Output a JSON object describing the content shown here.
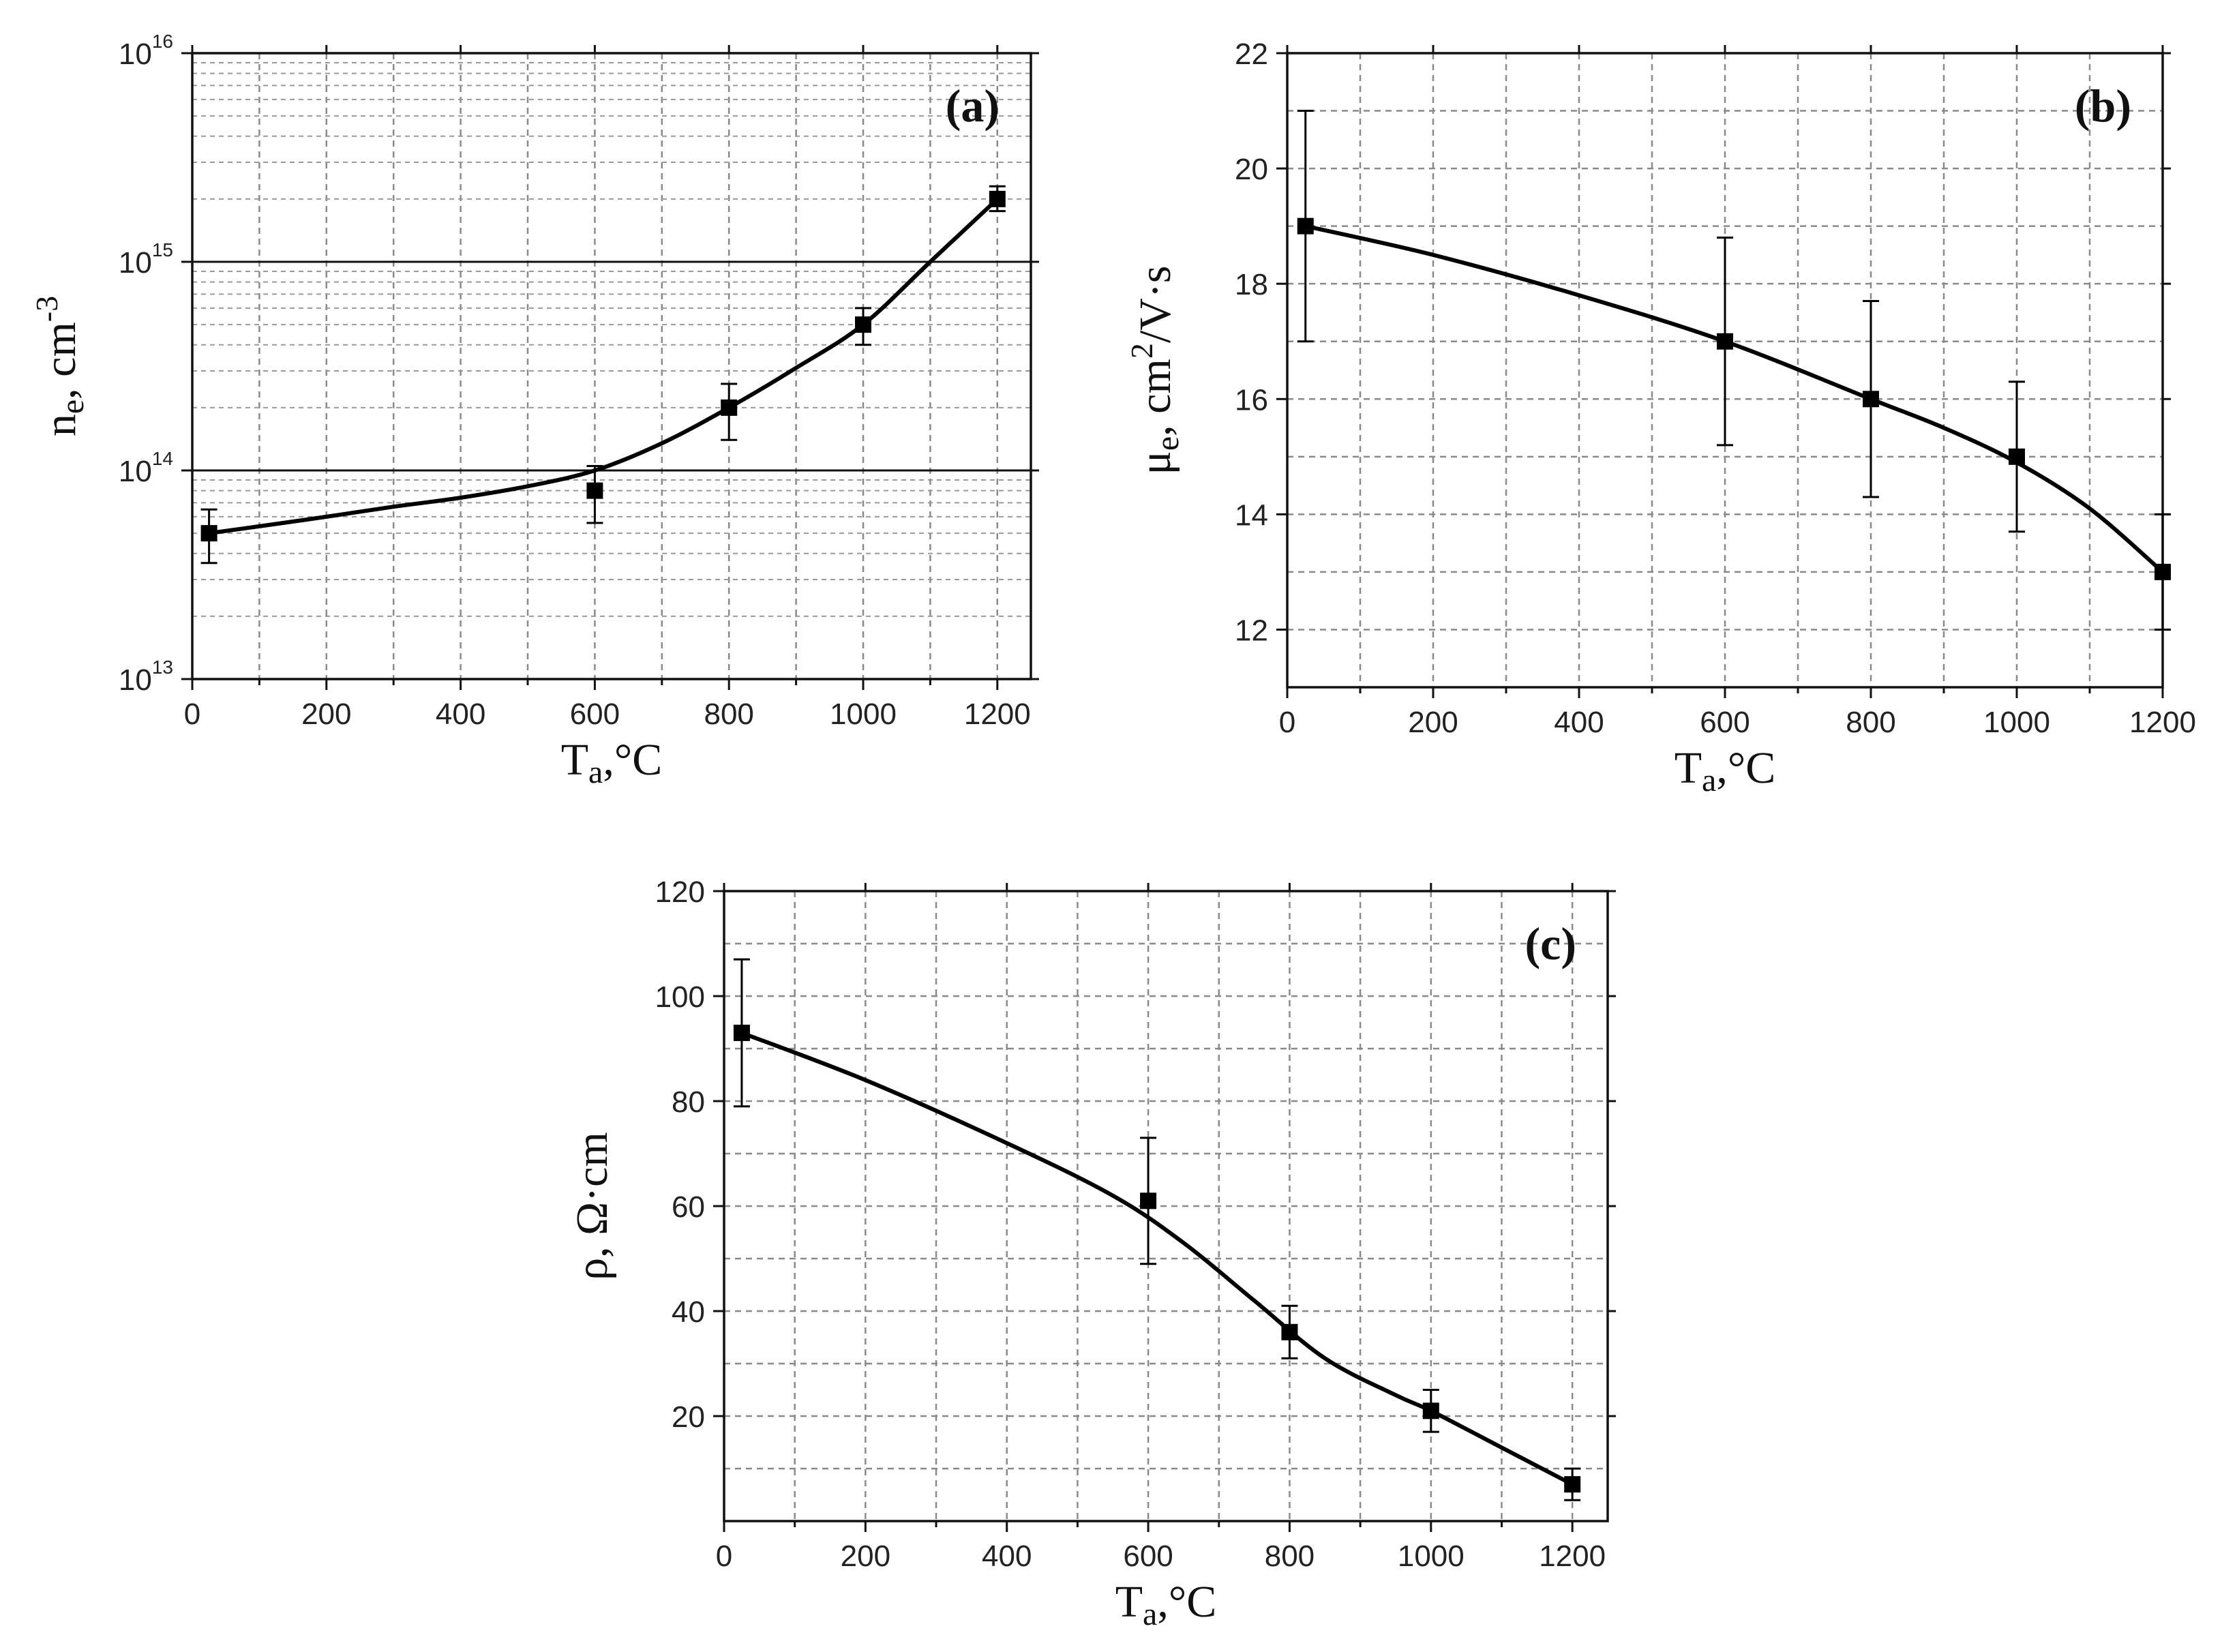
{
  "chart_data": [
    {
      "id": "a",
      "type": "scatter",
      "panel_label": "(a)",
      "yscale": "log",
      "xlabel_main": "T",
      "xlabel_sub": "a",
      "xlabel_unit": ",°C",
      "ylabel_main": "n",
      "ylabel_sub": "e",
      "ylabel_unit": ", cm",
      "ylabel_sup": "-3",
      "xlim": [
        0,
        1250
      ],
      "ylim": [
        10000000000000.0,
        1e+16
      ],
      "xticks": [
        0,
        200,
        400,
        600,
        800,
        1000,
        1200
      ],
      "yticks": [
        {
          "value": 10000000000000.0,
          "base": "10",
          "exp": "13"
        },
        {
          "value": 100000000000000.0,
          "base": "10",
          "exp": "14"
        },
        {
          "value": 1000000000000000.0,
          "base": "10",
          "exp": "15"
        },
        {
          "value": 1e+16,
          "base": "10",
          "exp": "16"
        }
      ],
      "points": [
        {
          "x": 25,
          "y": 50000000000000.0,
          "err_low": 36000000000000.0,
          "err_high": 65000000000000.0
        },
        {
          "x": 600,
          "y": 80000000000000.0,
          "err_low": 56000000000000.0,
          "err_high": 105000000000000.0
        },
        {
          "x": 800,
          "y": 200000000000000.0,
          "err_low": 140000000000000.0,
          "err_high": 260000000000000.0
        },
        {
          "x": 1000,
          "y": 500000000000000.0,
          "err_low": 400000000000000.0,
          "err_high": 600000000000000.0
        },
        {
          "x": 1200,
          "y": 2000000000000000.0,
          "err_low": 1750000000000000.0,
          "err_high": 2300000000000000.0
        }
      ],
      "fit_curve": [
        [
          25,
          50000000000000.0
        ],
        [
          100,
          54000000000000.0
        ],
        [
          200,
          60000000000000.0
        ],
        [
          300,
          67000000000000.0
        ],
        [
          400,
          74000000000000.0
        ],
        [
          500,
          84000000000000.0
        ],
        [
          600,
          100000000000000.0
        ],
        [
          700,
          135000000000000.0
        ],
        [
          800,
          200000000000000.0
        ],
        [
          900,
          310000000000000.0
        ],
        [
          1000,
          500000000000000.0
        ],
        [
          1100,
          1000000000000000.0
        ],
        [
          1200,
          2000000000000000.0
        ]
      ],
      "reference_lines_y": [
        100000000000000.0,
        1000000000000000.0
      ]
    },
    {
      "id": "b",
      "type": "scatter",
      "panel_label": "(b)",
      "yscale": "linear",
      "xlabel_main": "T",
      "xlabel_sub": "a",
      "xlabel_unit": ",°C",
      "ylabel_main": "μ",
      "ylabel_sub": "e",
      "ylabel_unit": ", cm",
      "ylabel_sup": "2",
      "ylabel_tail": "/V·s",
      "xlim": [
        0,
        1200
      ],
      "ylim": [
        11,
        22
      ],
      "xticks": [
        0,
        200,
        400,
        600,
        800,
        1000,
        1200
      ],
      "yticks": [
        12,
        14,
        16,
        18,
        20,
        22
      ],
      "points": [
        {
          "x": 25,
          "y": 19,
          "err_low": 17,
          "err_high": 21
        },
        {
          "x": 600,
          "y": 17,
          "err_low": 15.2,
          "err_high": 18.8
        },
        {
          "x": 800,
          "y": 16,
          "err_low": 14.3,
          "err_high": 17.7
        },
        {
          "x": 1000,
          "y": 15,
          "err_low": 13.7,
          "err_high": 16.3
        },
        {
          "x": 1200,
          "y": 13,
          "err_low": 12,
          "err_high": 14
        }
      ],
      "fit_curve": [
        [
          25,
          19
        ],
        [
          200,
          18.5
        ],
        [
          400,
          17.8
        ],
        [
          600,
          17
        ],
        [
          800,
          16
        ],
        [
          900,
          15.5
        ],
        [
          1000,
          14.9
        ],
        [
          1100,
          14.1
        ],
        [
          1200,
          13
        ]
      ]
    },
    {
      "id": "c",
      "type": "scatter",
      "panel_label": "(c)",
      "yscale": "linear",
      "xlabel_main": "T",
      "xlabel_sub": "a",
      "xlabel_unit": ",°C",
      "ylabel_main": "ρ, Ω·cm",
      "xlim": [
        0,
        1250
      ],
      "ylim": [
        0,
        120
      ],
      "xticks": [
        0,
        200,
        400,
        600,
        800,
        1000,
        1200
      ],
      "yticks": [
        20,
        40,
        60,
        80,
        100,
        120
      ],
      "points": [
        {
          "x": 25,
          "y": 93,
          "err_low": 79,
          "err_high": 107
        },
        {
          "x": 600,
          "y": 61,
          "err_low": 49,
          "err_high": 73
        },
        {
          "x": 800,
          "y": 36,
          "err_low": 31,
          "err_high": 41
        },
        {
          "x": 1000,
          "y": 21,
          "err_low": 17,
          "err_high": 25
        },
        {
          "x": 1200,
          "y": 7,
          "err_low": 4,
          "err_high": 10
        }
      ],
      "fit_curve": [
        [
          25,
          93
        ],
        [
          200,
          84
        ],
        [
          400,
          72
        ],
        [
          550,
          62
        ],
        [
          650,
          53
        ],
        [
          750,
          42
        ],
        [
          850,
          31
        ],
        [
          950,
          24
        ],
        [
          1000,
          21
        ],
        [
          1100,
          14
        ],
        [
          1200,
          7
        ]
      ]
    }
  ]
}
